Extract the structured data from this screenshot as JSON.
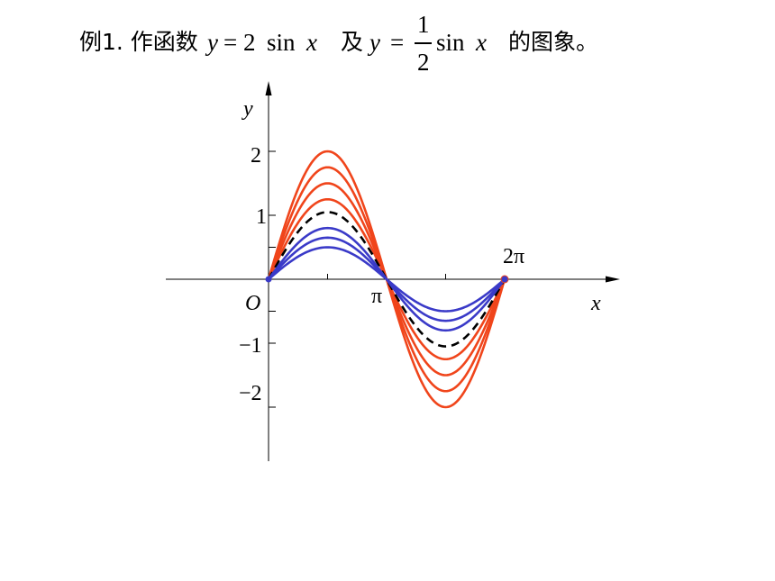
{
  "title": {
    "prefix": "例1. 作函数",
    "eq1_y": "y",
    "eq1_rhs": "= 2",
    "eq1_sin": "sin",
    "eq1_x": "x",
    "conj": "及",
    "eq2_y": "y",
    "eq2_eq": "=",
    "frac_num": "1",
    "frac_den": "2",
    "eq2_sin": "sin",
    "eq2_x": "x",
    "suffix": "的图象。"
  },
  "chart_data": {
    "type": "line",
    "title": "",
    "xlabel": "x",
    "ylabel": "y",
    "origin_label": "O",
    "x_tick_labels": [
      "π",
      "2π"
    ],
    "y_tick_labels": [
      "2",
      "1",
      "−1",
      "−2"
    ],
    "x_range": [
      0,
      6.2832
    ],
    "y_ticks": [
      2,
      1,
      0.5,
      -0.5,
      -1,
      -2
    ],
    "amplitudes_red": [
      2.0,
      1.75,
      1.5,
      1.25
    ],
    "amplitude_dashed": 1.05,
    "amplitudes_blue": [
      0.8,
      0.65,
      0.5
    ],
    "colors": {
      "red": "#f0451b",
      "blue": "#3a3ac8",
      "dashed": "#000000",
      "axis": "#000000"
    }
  }
}
